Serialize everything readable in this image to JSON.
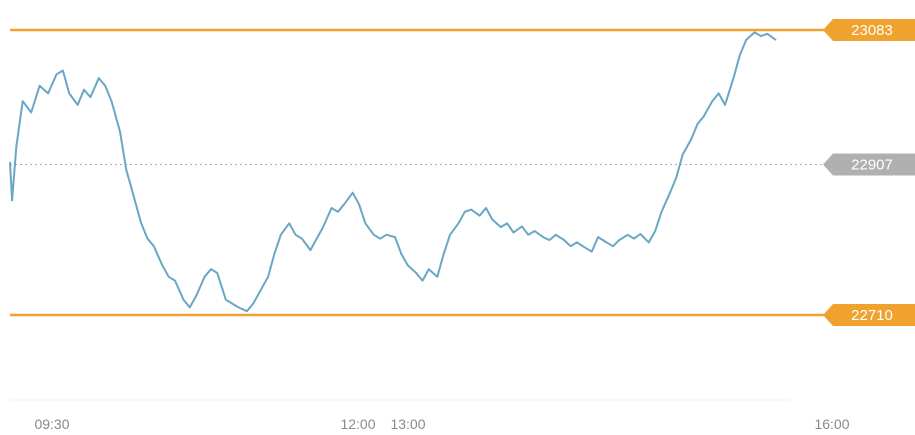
{
  "chart_data": {
    "type": "line",
    "title": "",
    "xlabel": "",
    "ylabel": "",
    "x_ticks": [
      "09:30",
      "12:00",
      "13:00",
      "16:00"
    ],
    "x_range": [
      "09:30",
      "16:00"
    ],
    "ylim": [
      22600,
      23100
    ],
    "reference_lines": [
      {
        "label": "23083",
        "value": 23083,
        "color": "#f0a22e",
        "style": "solid"
      },
      {
        "label": "22907",
        "value": 22907,
        "color": "#b0b0b0",
        "style": "dotted"
      },
      {
        "label": "22710",
        "value": 22710,
        "color": "#f0a22e",
        "style": "solid"
      }
    ],
    "series": [
      {
        "color": "#6aa7c4",
        "points": [
          [
            "09:30",
            22910
          ],
          [
            "09:31",
            22860
          ],
          [
            "09:33",
            22930
          ],
          [
            "09:36",
            22990
          ],
          [
            "09:40",
            22975
          ],
          [
            "09:44",
            23010
          ],
          [
            "09:48",
            23000
          ],
          [
            "09:52",
            23025
          ],
          [
            "09:55",
            23030
          ],
          [
            "09:58",
            23000
          ],
          [
            "10:02",
            22985
          ],
          [
            "10:05",
            23005
          ],
          [
            "10:08",
            22995
          ],
          [
            "10:12",
            23020
          ],
          [
            "10:15",
            23010
          ],
          [
            "10:18",
            22990
          ],
          [
            "10:22",
            22950
          ],
          [
            "10:25",
            22900
          ],
          [
            "10:28",
            22870
          ],
          [
            "10:32",
            22830
          ],
          [
            "10:35",
            22810
          ],
          [
            "10:38",
            22800
          ],
          [
            "10:42",
            22775
          ],
          [
            "10:45",
            22760
          ],
          [
            "10:48",
            22755
          ],
          [
            "10:52",
            22730
          ],
          [
            "10:55",
            22720
          ],
          [
            "10:58",
            22735
          ],
          [
            "11:02",
            22760
          ],
          [
            "11:05",
            22770
          ],
          [
            "11:08",
            22765
          ],
          [
            "11:12",
            22730
          ],
          [
            "11:15",
            22725
          ],
          [
            "11:18",
            22720
          ],
          [
            "11:22",
            22715
          ],
          [
            "11:25",
            22725
          ],
          [
            "11:28",
            22740
          ],
          [
            "11:32",
            22760
          ],
          [
            "11:35",
            22790
          ],
          [
            "11:38",
            22815
          ],
          [
            "11:42",
            22830
          ],
          [
            "11:45",
            22815
          ],
          [
            "11:48",
            22810
          ],
          [
            "11:52",
            22795
          ],
          [
            "11:55",
            22810
          ],
          [
            "11:58",
            22825
          ],
          [
            "12:02",
            22850
          ],
          [
            "12:05",
            22845
          ],
          [
            "12:08",
            22855
          ],
          [
            "12:12",
            22870
          ],
          [
            "12:15",
            22855
          ],
          [
            "12:18",
            22830
          ],
          [
            "12:22",
            22815
          ],
          [
            "12:25",
            22810
          ],
          [
            "12:28",
            22815
          ],
          [
            "12:32",
            22812
          ],
          [
            "12:35",
            22790
          ],
          [
            "12:38",
            22775
          ],
          [
            "12:42",
            22765
          ],
          [
            "12:45",
            22755
          ],
          [
            "12:48",
            22770
          ],
          [
            "12:52",
            22760
          ],
          [
            "12:55",
            22790
          ],
          [
            "12:58",
            22815
          ],
          [
            "13:02",
            22830
          ],
          [
            "13:05",
            22845
          ],
          [
            "13:08",
            22848
          ],
          [
            "13:12",
            22840
          ],
          [
            "13:15",
            22850
          ],
          [
            "13:18",
            22835
          ],
          [
            "13:22",
            22825
          ],
          [
            "13:25",
            22830
          ],
          [
            "13:28",
            22818
          ],
          [
            "13:32",
            22826
          ],
          [
            "13:35",
            22815
          ],
          [
            "13:38",
            22820
          ],
          [
            "13:42",
            22812
          ],
          [
            "13:45",
            22808
          ],
          [
            "13:48",
            22815
          ],
          [
            "13:52",
            22808
          ],
          [
            "13:55",
            22800
          ],
          [
            "13:58",
            22805
          ],
          [
            "14:02",
            22798
          ],
          [
            "14:05",
            22793
          ],
          [
            "14:08",
            22812
          ],
          [
            "14:12",
            22805
          ],
          [
            "14:15",
            22800
          ],
          [
            "14:18",
            22808
          ],
          [
            "14:22",
            22815
          ],
          [
            "14:25",
            22810
          ],
          [
            "14:28",
            22816
          ],
          [
            "14:32",
            22805
          ],
          [
            "14:35",
            22820
          ],
          [
            "14:38",
            22845
          ],
          [
            "14:42",
            22870
          ],
          [
            "14:45",
            22890
          ],
          [
            "14:48",
            22920
          ],
          [
            "14:52",
            22940
          ],
          [
            "14:55",
            22960
          ],
          [
            "14:58",
            22970
          ],
          [
            "15:02",
            22990
          ],
          [
            "15:05",
            23000
          ],
          [
            "15:08",
            22985
          ],
          [
            "15:12",
            23020
          ],
          [
            "15:15",
            23050
          ],
          [
            "15:18",
            23070
          ],
          [
            "15:22",
            23080
          ],
          [
            "15:25",
            23075
          ],
          [
            "15:28",
            23078
          ],
          [
            "15:32",
            23070
          ]
        ]
      }
    ]
  }
}
